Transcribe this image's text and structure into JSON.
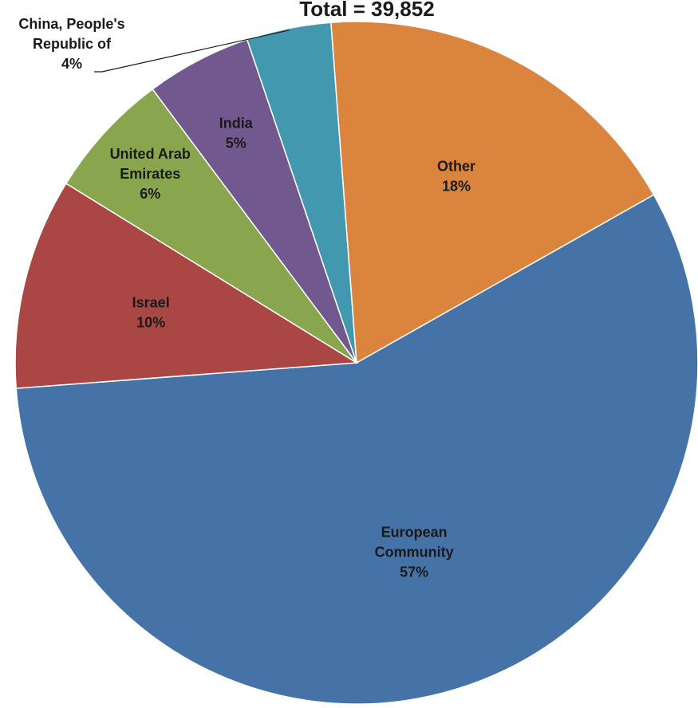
{
  "chart_data": {
    "type": "pie",
    "title": "Total = 39,852",
    "slices": [
      {
        "name": "European Community",
        "label_lines": [
          "European",
          "Community"
        ],
        "percent_label": "57%",
        "value": 57,
        "color": "#4572A7"
      },
      {
        "name": "Israel",
        "label_lines": [
          "Israel"
        ],
        "percent_label": "10%",
        "value": 10,
        "color": "#AA4643"
      },
      {
        "name": "United Arab Emirates",
        "label_lines": [
          "United Arab",
          "Emirates"
        ],
        "percent_label": "6%",
        "value": 6,
        "color": "#89A54E"
      },
      {
        "name": "India",
        "label_lines": [
          "India"
        ],
        "percent_label": "5%",
        "value": 5,
        "color": "#71588F"
      },
      {
        "name": "China, People's Republic of",
        "label_lines": [
          "China, People's",
          "Republic of"
        ],
        "percent_label": "4%",
        "value": 4,
        "color": "#4198AF"
      },
      {
        "name": "Other",
        "label_lines": [
          "Other"
        ],
        "percent_label": "18%",
        "value": 18,
        "color": "#DB843D"
      }
    ],
    "legend": "none"
  }
}
